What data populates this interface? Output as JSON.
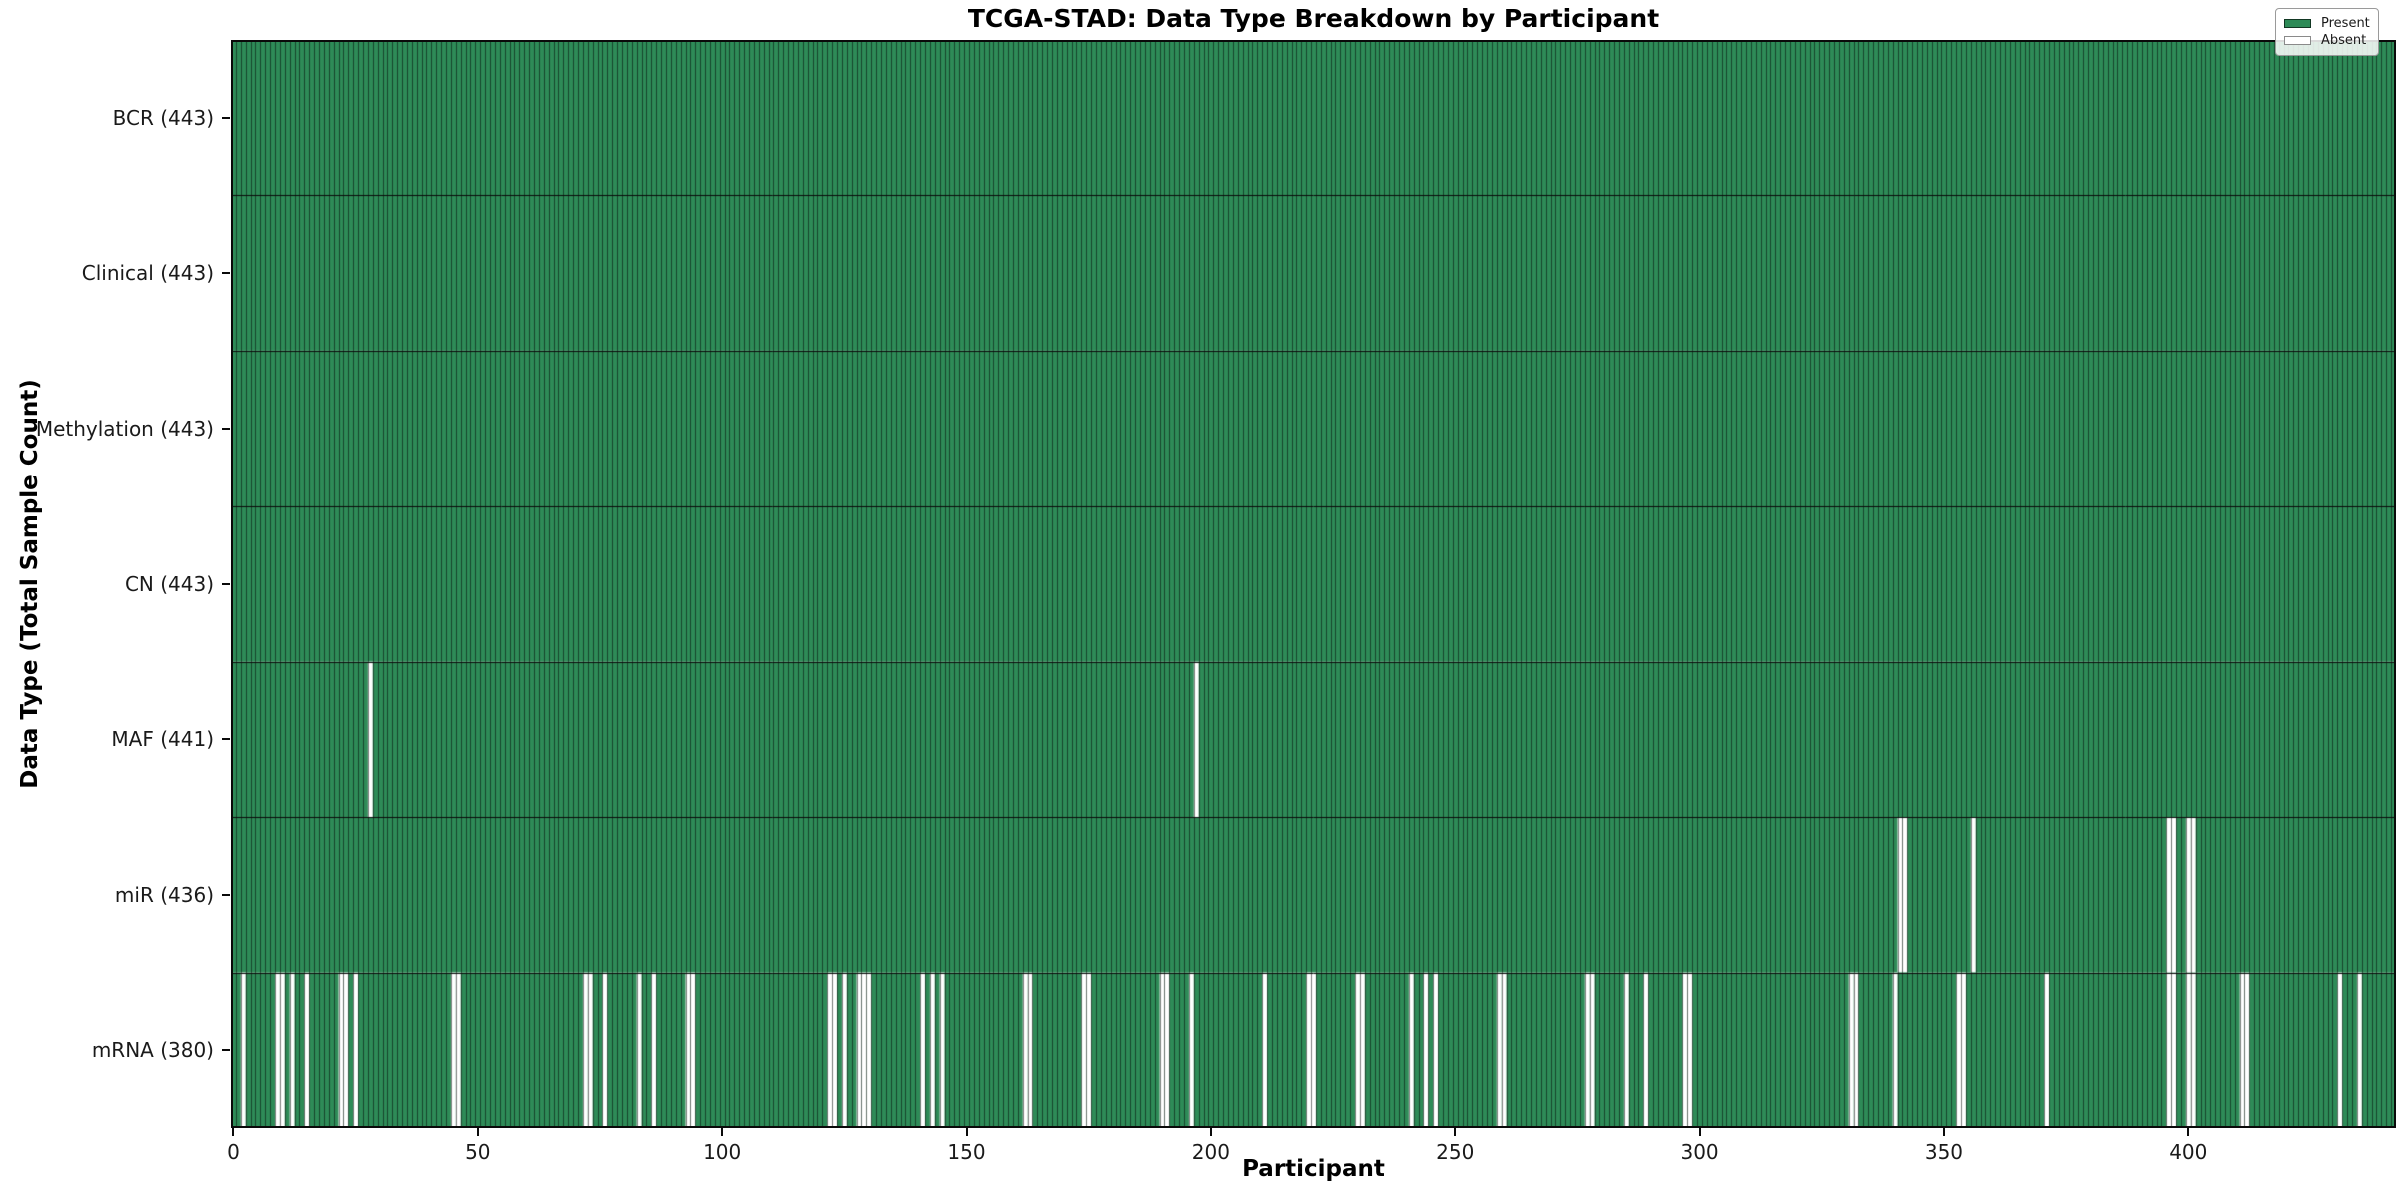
{
  "title": "TCGA-STAD: Data Type Breakdown by Participant",
  "x_axis_label": "Participant",
  "y_axis_label": "Data Type (Total Sample Count)",
  "legend": {
    "present_label": "Present",
    "absent_label": "Absent"
  },
  "colors": {
    "present": "#2e8b57",
    "absent": "#ffffff",
    "bar_edge": "rgba(0,0,0,0.5)",
    "row_divider": "#0a0a0a",
    "plot_border": "#0a0a0a",
    "legend_swatch_border": "#8a8a8a"
  },
  "chart_data": {
    "type": "heatmap",
    "title": "TCGA-STAD: Data Type Breakdown by Participant",
    "xlabel": "Participant",
    "ylabel": "Data Type (Total Sample Count)",
    "legend_entries": [
      "Present",
      "Absent"
    ],
    "legend_position": "upper right",
    "grid": false,
    "n_participants": 443,
    "xlim": [
      0,
      443
    ],
    "x_ticks": [
      0,
      50,
      100,
      150,
      200,
      250,
      300,
      350,
      400
    ],
    "rows": [
      {
        "label": "BCR (443)",
        "data_type": "BCR",
        "present_count": 443,
        "absent_participants": []
      },
      {
        "label": "Clinical (443)",
        "data_type": "Clinical",
        "present_count": 443,
        "absent_participants": []
      },
      {
        "label": "Methylation (443)",
        "data_type": "Methylation",
        "present_count": 443,
        "absent_participants": []
      },
      {
        "label": "CN (443)",
        "data_type": "CN",
        "present_count": 443,
        "absent_participants": []
      },
      {
        "label": "MAF (441)",
        "data_type": "MAF",
        "present_count": 441,
        "absent_participants": [
          28,
          197
        ]
      },
      {
        "label": "miR (436)",
        "data_type": "miR",
        "present_count": 436,
        "absent_participants": [
          341,
          342,
          356,
          396,
          397,
          400,
          401
        ]
      },
      {
        "label": "mRNA (380)",
        "data_type": "mRNA",
        "present_count": 380,
        "absent_participants": [
          2,
          9,
          10,
          12,
          15,
          22,
          23,
          25,
          45,
          46,
          72,
          73,
          76,
          83,
          86,
          93,
          94,
          122,
          123,
          125,
          128,
          129,
          130,
          141,
          143,
          145,
          162,
          163,
          174,
          175,
          190,
          191,
          196,
          211,
          220,
          221,
          230,
          231,
          241,
          244,
          246,
          259,
          260,
          277,
          278,
          285,
          289,
          297,
          298,
          331,
          332,
          340,
          353,
          354,
          371,
          396,
          397,
          400,
          401,
          411,
          412,
          431,
          435
        ]
      }
    ]
  }
}
